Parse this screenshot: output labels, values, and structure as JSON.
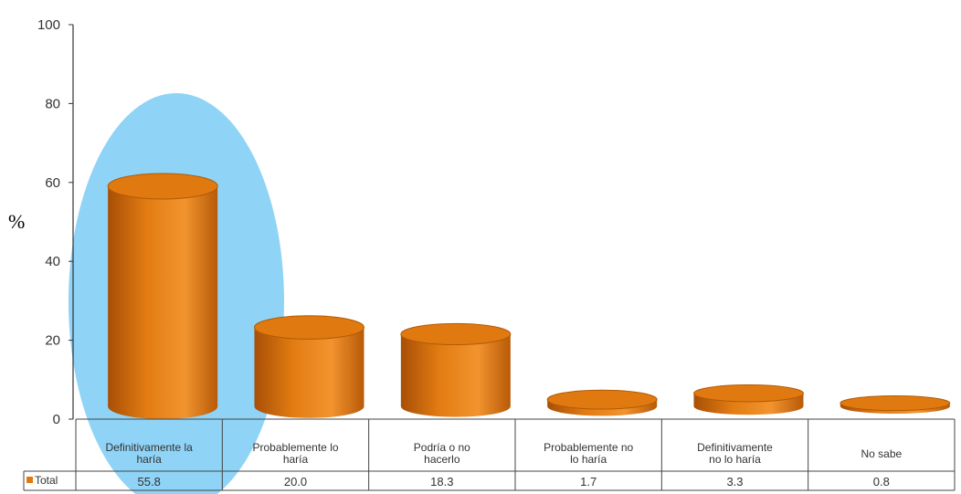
{
  "chart_data": {
    "type": "bar",
    "style": "3d-cylinder",
    "unit_label": "%",
    "ylim": [
      0,
      100
    ],
    "yticks": [
      0,
      20,
      40,
      60,
      80,
      100
    ],
    "categories": [
      [
        "Definitivamente la",
        "haría"
      ],
      [
        "Probablemente lo",
        "haría"
      ],
      [
        "Podría o no",
        "hacerlo"
      ],
      [
        "Probablemente no",
        "lo haría"
      ],
      [
        "Definitivamente",
        "no lo haría"
      ],
      [
        "No sabe"
      ]
    ],
    "series": [
      {
        "name": "Total",
        "values": [
          55.8,
          20.0,
          18.3,
          1.7,
          3.3,
          0.8
        ],
        "color": "#E07A10"
      }
    ],
    "value_labels": [
      "55.8",
      "20.0",
      "18.3",
      "1.7",
      "3.3",
      "0.8"
    ],
    "highlight": {
      "category_index": 0,
      "color": "#8FD3F6"
    },
    "data_table": true
  }
}
